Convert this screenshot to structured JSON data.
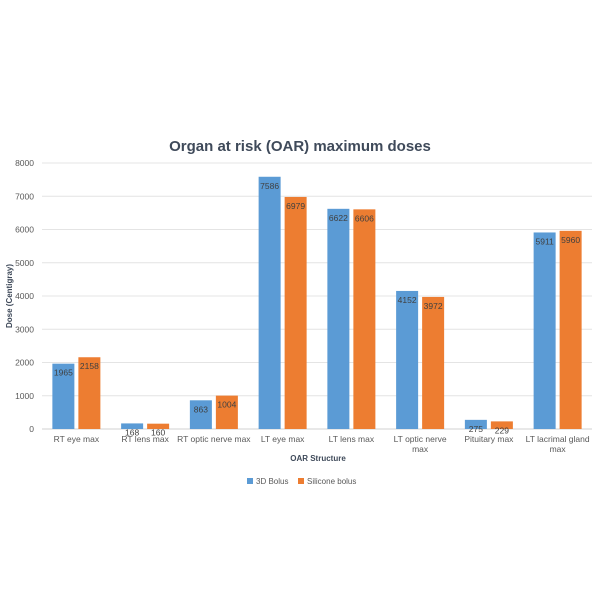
{
  "chart_data": {
    "type": "bar",
    "title": "Organ at risk (OAR) maximum doses",
    "xlabel": "OAR Structure",
    "ylabel": "Dose (Centigray)",
    "ylim": [
      0,
      8000
    ],
    "yticks": [
      0,
      1000,
      2000,
      3000,
      4000,
      5000,
      6000,
      7000,
      8000
    ],
    "grid": true,
    "legend_position": "bottom",
    "categories": [
      [
        "RT eye max"
      ],
      [
        "RT lens max"
      ],
      [
        "RT optic nerve max"
      ],
      [
        "LT eye max"
      ],
      [
        "LT lens max"
      ],
      [
        "LT optic  nerve",
        "max"
      ],
      [
        "Pituitary max"
      ],
      [
        "LT lacrimal gland",
        "max"
      ]
    ],
    "series": [
      {
        "name": "3D Bolus",
        "color": "#5b9bd5",
        "values": [
          1965,
          168,
          863,
          7586,
          6622,
          4152,
          275,
          5911
        ]
      },
      {
        "name": "Silicone bolus",
        "color": "#ed7d31",
        "values": [
          2158,
          160,
          1004,
          6979,
          6606,
          3972,
          229,
          5960
        ]
      }
    ]
  }
}
